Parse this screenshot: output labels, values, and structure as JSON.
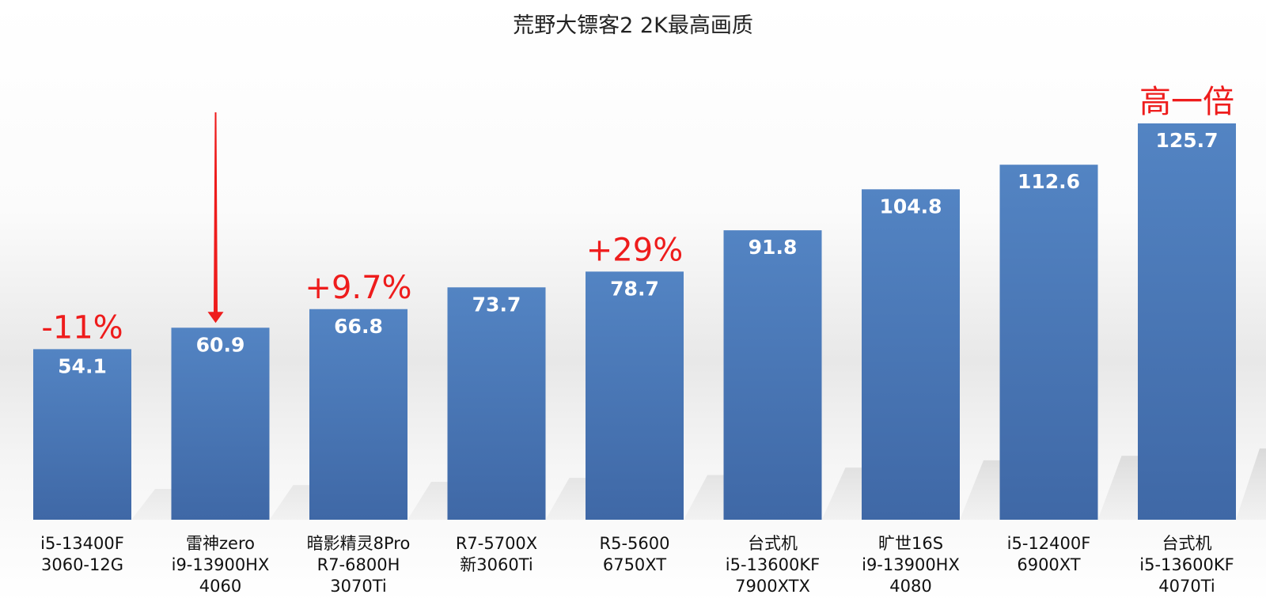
{
  "chart_data": {
    "type": "bar",
    "title": "荒野大镖客2 2K最高画质",
    "categories": [
      [
        "i5-13400F",
        "3060-12G"
      ],
      [
        "雷神zero",
        "i9-13900HX",
        "4060"
      ],
      [
        "暗影精灵8Pro",
        "R7-6800H",
        "3070Ti"
      ],
      [
        "R7-5700X",
        "新3060Ti"
      ],
      [
        "R5-5600",
        "6750XT"
      ],
      [
        "台式机",
        "i5-13600KF",
        "7900XTX"
      ],
      [
        "旷世16S",
        "i9-13900HX",
        "4080"
      ],
      [
        "i5-12400F",
        "6900XT"
      ],
      [
        "台式机",
        "i5-13600KF",
        "4070Ti"
      ]
    ],
    "values": [
      54.1,
      60.9,
      66.8,
      73.7,
      78.7,
      91.8,
      104.8,
      112.6,
      125.7
    ],
    "value_labels": [
      "54.1",
      "60.9",
      "66.8",
      "73.7",
      "78.7",
      "91.8",
      "104.8",
      "112.6",
      "125.7"
    ],
    "annotations": [
      {
        "index": 0,
        "text": "-11%"
      },
      {
        "index": 2,
        "text": "+9.7%"
      },
      {
        "index": 4,
        "text": "+29%"
      },
      {
        "index": 8,
        "text": "高一倍"
      }
    ],
    "highlight_index": 1,
    "xlabel": "",
    "ylabel": "",
    "ylim": [
      0,
      125.7
    ],
    "grid": false,
    "legend": "none",
    "bar_color": "#4a76b4",
    "annotation_color": "#ee1c1c",
    "arrow_color": "#ee1c1c"
  }
}
